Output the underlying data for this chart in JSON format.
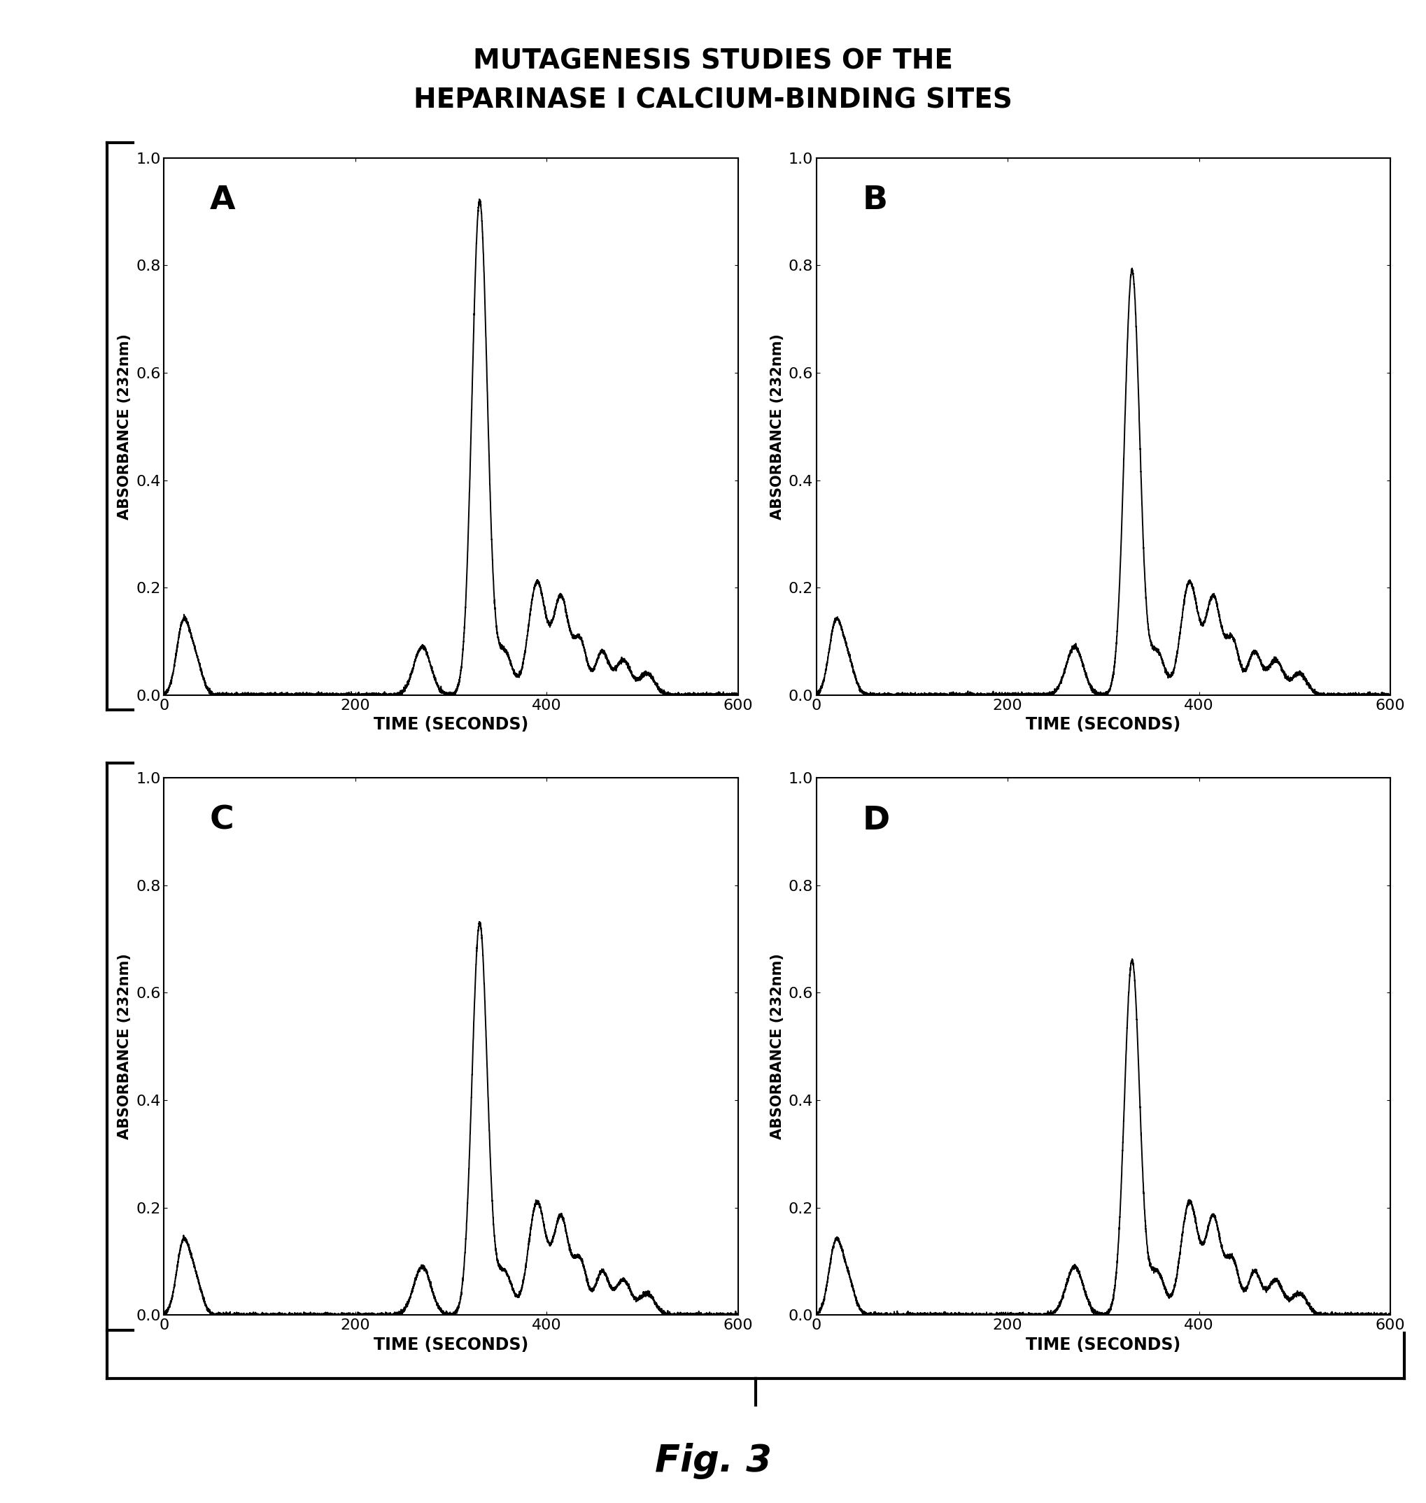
{
  "title_line1": "MUTAGENESIS STUDIES OF THE",
  "title_line2": "HEPARINASE I CALCIUM-BINDING SITES",
  "fig_label": "Fig. 3",
  "xlabel": "TIME (SECONDS)",
  "ylabel": "ABSORBANCE (232nm)",
  "xlim": [
    0,
    600
  ],
  "ylim": [
    0,
    1
  ],
  "xticks": [
    0,
    200,
    400,
    600
  ],
  "yticks": [
    0,
    0.2,
    0.4,
    0.6,
    0.8,
    1
  ],
  "panel_labels": [
    "A",
    "B",
    "C",
    "D"
  ],
  "panel_peaks": [
    0.92,
    0.79,
    0.73,
    0.66
  ],
  "background": "#ffffff",
  "line_color": "#000000",
  "title_fontsize": 28,
  "axis_label_fontsize": 17,
  "tick_fontsize": 16,
  "panel_label_fontsize": 34
}
